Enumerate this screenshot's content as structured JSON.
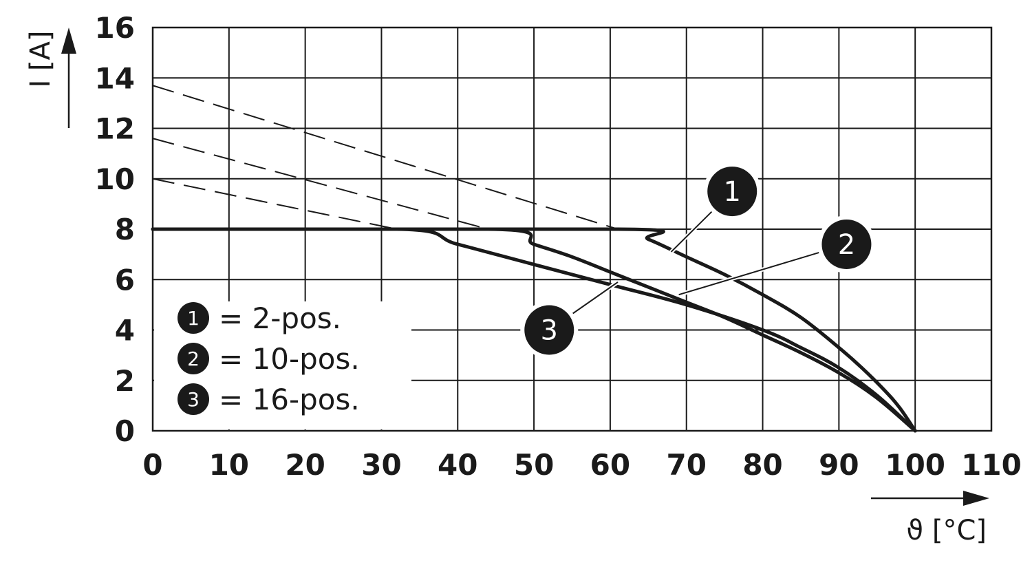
{
  "chart_data": {
    "type": "line",
    "title": "",
    "xlabel": "ϑ [°C]",
    "ylabel": "I [A]",
    "xlim": [
      0,
      110
    ],
    "ylim": [
      0,
      16
    ],
    "x_ticks": [
      0,
      10,
      20,
      30,
      40,
      50,
      60,
      70,
      80,
      90,
      100,
      110
    ],
    "y_ticks": [
      0,
      2,
      4,
      6,
      8,
      10,
      12,
      14,
      16
    ],
    "x_tick_labels": [
      "0",
      "10",
      "20",
      "30",
      "40",
      "50",
      "60",
      "70",
      "80",
      "90",
      "100",
      "110"
    ],
    "y_tick_labels": [
      "0",
      "2",
      "4",
      "6",
      "8",
      "10",
      "12",
      "14",
      "16"
    ],
    "grid": true,
    "current_limit": 8,
    "series": [
      {
        "marker": "1",
        "name": "2-pos.",
        "dashed_x": [
          0,
          61
        ],
        "dashed_y": [
          13.7,
          8
        ],
        "solid_x": [
          0,
          61,
          65,
          70,
          75,
          80,
          85,
          90,
          93,
          96,
          98,
          100
        ],
        "solid_y": [
          8,
          8,
          7.6,
          6.9,
          6.2,
          5.4,
          4.5,
          3.3,
          2.5,
          1.6,
          0.9,
          0
        ]
      },
      {
        "marker": "2",
        "name": "10-pos.",
        "dashed_x": [
          0,
          44
        ],
        "dashed_y": [
          11.6,
          8
        ],
        "solid_x": [
          0,
          44,
          50,
          55,
          60,
          65,
          70,
          75,
          80,
          85,
          90,
          95,
          100
        ],
        "solid_y": [
          8,
          8,
          7.4,
          6.9,
          6.3,
          5.7,
          5.1,
          4.5,
          3.8,
          3.1,
          2.3,
          1.3,
          0
        ]
      },
      {
        "marker": "3",
        "name": "16-pos.",
        "dashed_x": [
          0,
          32
        ],
        "dashed_y": [
          10,
          8
        ],
        "solid_x": [
          0,
          32,
          40,
          50,
          60,
          70,
          80,
          85,
          90,
          95,
          100
        ],
        "solid_y": [
          8,
          8,
          7.4,
          6.6,
          5.8,
          5.0,
          4.0,
          3.3,
          2.5,
          1.4,
          0
        ]
      }
    ],
    "legend": {
      "placement": "bottom-left",
      "entries": [
        {
          "marker": "1",
          "text": "= 2-pos."
        },
        {
          "marker": "2",
          "text": "= 10-pos."
        },
        {
          "marker": "3",
          "text": "= 16-pos."
        }
      ]
    },
    "annotations": [
      {
        "marker": "1",
        "points_to_x": 68,
        "points_to_y": 7.1,
        "label_x": 76,
        "label_y": 9.5
      },
      {
        "marker": "2",
        "points_to_x": 69,
        "points_to_y": 5.4,
        "label_x": 91,
        "label_y": 7.4
      },
      {
        "marker": "3",
        "points_to_x": 61,
        "points_to_y": 5.9,
        "label_x": 52,
        "label_y": 4.0
      }
    ]
  }
}
